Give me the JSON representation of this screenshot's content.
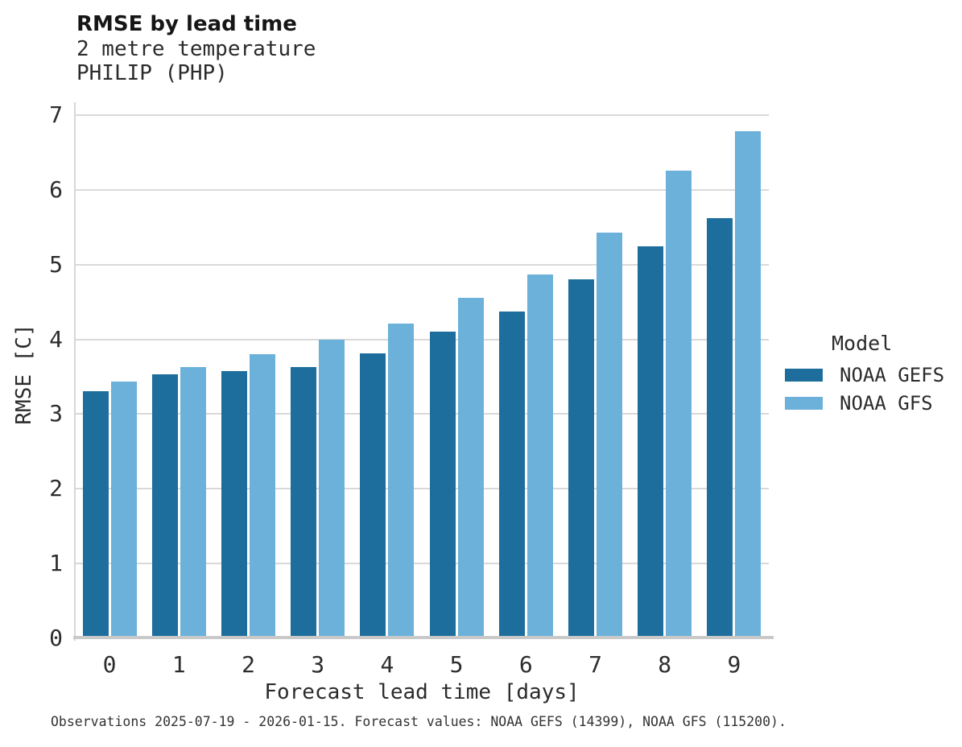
{
  "header": {
    "title": "RMSE by lead time",
    "subtitle_line1": "2 metre temperature",
    "subtitle_line2": "PHILIP (PHP)"
  },
  "chart_data": {
    "type": "bar",
    "title": "RMSE by lead time",
    "subtitle": [
      "2 metre temperature",
      "PHILIP (PHP)"
    ],
    "xlabel": "Forecast lead time [days]",
    "ylabel": "RMSE [C]",
    "ylim": [
      0,
      7
    ],
    "yticks": [
      0,
      1,
      2,
      3,
      4,
      5,
      6,
      7
    ],
    "categories": [
      "0",
      "1",
      "2",
      "3",
      "4",
      "5",
      "6",
      "7",
      "8",
      "9"
    ],
    "series": [
      {
        "name": "NOAA GEFS",
        "color": "#1d6e9c",
        "values": [
          3.31,
          3.53,
          3.58,
          3.63,
          3.81,
          4.1,
          4.37,
          4.8,
          5.25,
          5.62
        ]
      },
      {
        "name": "NOAA GFS",
        "color": "#6bb1d9",
        "values": [
          3.44,
          3.63,
          3.8,
          4.0,
          4.21,
          4.56,
          4.87,
          5.43,
          6.26,
          6.79
        ]
      }
    ],
    "legend": {
      "title": "Model",
      "position": "right"
    },
    "grid": true
  },
  "caption": "Observations 2025-07-19 - 2026-01-15. Forecast values: NOAA GEFS (14399), NOAA GFS (115200)."
}
